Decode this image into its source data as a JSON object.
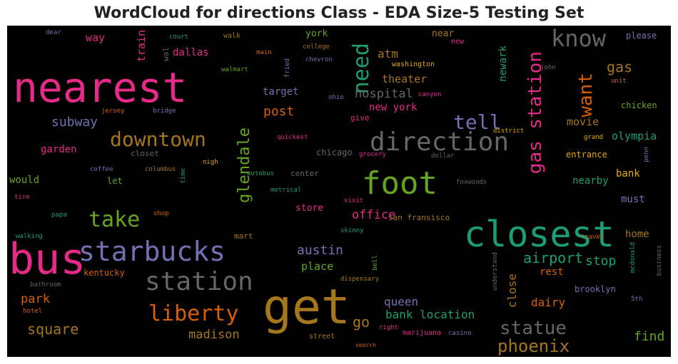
{
  "title": "WordCloud for directions Class - EDA Size-5 Testing Set",
  "words": [
    {
      "text": "nearest",
      "color": "#e7298a"
    },
    {
      "text": "bus",
      "color": "#e7298a"
    },
    {
      "text": "get",
      "color": "#a6761d"
    },
    {
      "text": "closest",
      "color": "#1b9e77"
    },
    {
      "text": "foot",
      "color": "#66a61e"
    },
    {
      "text": "direction",
      "color": "#666666"
    },
    {
      "text": "starbucks",
      "color": "#7570b3"
    },
    {
      "text": "station",
      "color": "#666666"
    },
    {
      "text": "know",
      "color": "#666666"
    },
    {
      "text": "downtown",
      "color": "#a6761d"
    },
    {
      "text": "liberty",
      "color": "#d95f02"
    },
    {
      "text": "take",
      "color": "#66a61e"
    },
    {
      "text": "gas station",
      "color": "#e7298a"
    },
    {
      "text": "need",
      "color": "#1b9e77"
    },
    {
      "text": "statue",
      "color": "#666666"
    },
    {
      "text": "phoenix",
      "color": "#a6761d"
    },
    {
      "text": "tell",
      "color": "#7570b3"
    },
    {
      "text": "want",
      "color": "#d95f02"
    },
    {
      "text": "glendale",
      "color": "#66a61e"
    },
    {
      "text": "square",
      "color": "#a6761d"
    },
    {
      "text": "madison",
      "color": "#a6761d"
    },
    {
      "text": "hospital",
      "color": "#666666"
    },
    {
      "text": "gas",
      "color": "#a6761d"
    },
    {
      "text": "airport",
      "color": "#1b9e77"
    },
    {
      "text": "stop",
      "color": "#1b9e77"
    },
    {
      "text": "austin",
      "color": "#7570b3"
    },
    {
      "text": "subway",
      "color": "#7570b3"
    },
    {
      "text": "bank location",
      "color": "#1b9e77"
    },
    {
      "text": "queen",
      "color": "#7570b3"
    },
    {
      "text": "office",
      "color": "#e7298a"
    },
    {
      "text": "go",
      "color": "#a6761d"
    },
    {
      "text": "post",
      "color": "#d95f02"
    },
    {
      "text": "park",
      "color": "#d95f02"
    },
    {
      "text": "dairy",
      "color": "#d95f02"
    },
    {
      "text": "find",
      "color": "#66a61e"
    },
    {
      "text": "close",
      "color": "#a6761d"
    },
    {
      "text": "movie",
      "color": "#a6761d"
    },
    {
      "text": "olympia",
      "color": "#1b9e77"
    },
    {
      "text": "new york",
      "color": "#e7298a"
    },
    {
      "text": "theater",
      "color": "#a6761d"
    },
    {
      "text": "atm",
      "color": "#a6761d"
    },
    {
      "text": "way",
      "color": "#e7298a"
    },
    {
      "text": "train",
      "color": "#e7298a"
    },
    {
      "text": "dallas",
      "color": "#e7298a"
    },
    {
      "text": "target",
      "color": "#7570b3"
    },
    {
      "text": "garden",
      "color": "#e7298a"
    },
    {
      "text": "would",
      "color": "#66a61e"
    },
    {
      "text": "place",
      "color": "#66a61e"
    },
    {
      "text": "store",
      "color": "#e7298a"
    },
    {
      "text": "nearby",
      "color": "#1b9e77"
    },
    {
      "text": "bank",
      "color": "#e6ab02"
    },
    {
      "text": "must",
      "color": "#7570b3"
    },
    {
      "text": "home",
      "color": "#a6761d"
    },
    {
      "text": "rest",
      "color": "#d95f02"
    },
    {
      "text": "brooklyn",
      "color": "#7570b3"
    },
    {
      "text": "newark",
      "color": "#1b9e77"
    },
    {
      "text": "near",
      "color": "#a6761d"
    },
    {
      "text": "york",
      "color": "#66a61e"
    },
    {
      "text": "please",
      "color": "#7570b3"
    },
    {
      "text": "chicken",
      "color": "#66a61e"
    },
    {
      "text": "entrance",
      "color": "#e6ab02"
    },
    {
      "text": "kentucky",
      "color": "#d95f02"
    },
    {
      "text": "let",
      "color": "#66a61e"
    },
    {
      "text": "chicago",
      "color": "#666666"
    },
    {
      "text": "center",
      "color": "#666666"
    },
    {
      "text": "mart",
      "color": "#a6761d"
    },
    {
      "text": "san fransisco",
      "color": "#a6761d"
    },
    {
      "text": "closet",
      "color": "#666666"
    },
    {
      "text": "give",
      "color": "#e7298a"
    },
    {
      "text": "washington",
      "color": "#e6ab02"
    },
    {
      "text": "wal",
      "color": "#666666"
    },
    {
      "text": "walk",
      "color": "#a6761d"
    },
    {
      "text": "court",
      "color": "#1b9e77"
    },
    {
      "text": "college",
      "color": "#a6761d"
    },
    {
      "text": "new",
      "color": "#e7298a"
    },
    {
      "text": "main",
      "color": "#d95f02"
    },
    {
      "text": "walmart",
      "color": "#66a61e"
    },
    {
      "text": "fried",
      "color": "#7570b3"
    },
    {
      "text": "chevron",
      "color": "#7570b3"
    },
    {
      "text": "dear",
      "color": "#7570b3"
    },
    {
      "text": "jersey",
      "color": "#d95f02"
    },
    {
      "text": "bridge",
      "color": "#7570b3"
    },
    {
      "text": "ohio",
      "color": "#7570b3"
    },
    {
      "text": "canyon",
      "color": "#e7298a"
    },
    {
      "text": "john",
      "color": "#666666"
    },
    {
      "text": "unit",
      "color": "#d95f02"
    },
    {
      "text": "district",
      "color": "#e6ab02"
    },
    {
      "text": "grand",
      "color": "#e6ab02"
    },
    {
      "text": "penn",
      "color": "#7570b3"
    },
    {
      "text": "quickest",
      "color": "#e7298a"
    },
    {
      "text": "grocery",
      "color": "#e7298a"
    },
    {
      "text": "dollar",
      "color": "#666666"
    },
    {
      "text": "coffee",
      "color": "#7570b3"
    },
    {
      "text": "columbus",
      "color": "#a6761d"
    },
    {
      "text": "time",
      "color": "#1b9e77"
    },
    {
      "text": "nigh",
      "color": "#e6ab02"
    },
    {
      "text": "autobus",
      "color": "#1b9e77"
    },
    {
      "text": "metrical",
      "color": "#1b9e77"
    },
    {
      "text": "foxwoods",
      "color": "#666666"
    },
    {
      "text": "visit",
      "color": "#e7298a"
    },
    {
      "text": "tire",
      "color": "#e7298a"
    },
    {
      "text": "papa",
      "color": "#1b9e77"
    },
    {
      "text": "shop",
      "color": "#d95f02"
    },
    {
      "text": "walking",
      "color": "#1b9e77"
    },
    {
      "text": "skinny",
      "color": "#1b9e77"
    },
    {
      "text": "travel",
      "color": "#d95f02"
    },
    {
      "text": "mcdonald",
      "color": "#1b9e77"
    },
    {
      "text": "business",
      "color": "#666666"
    },
    {
      "text": "bell",
      "color": "#66a61e"
    },
    {
      "text": "understand",
      "color": "#666666"
    },
    {
      "text": "bathroom",
      "color": "#666666"
    },
    {
      "text": "dispensary",
      "color": "#a6761d"
    },
    {
      "text": "hotel",
      "color": "#d95f02"
    },
    {
      "text": "right",
      "color": "#e7298a"
    },
    {
      "text": "marijuana",
      "color": "#e7298a"
    },
    {
      "text": "casino",
      "color": "#7570b3"
    },
    {
      "text": "street",
      "color": "#a6761d"
    },
    {
      "text": "search",
      "color": "#d95f02"
    },
    {
      "text": "5th",
      "color": "#7570b3"
    }
  ]
}
